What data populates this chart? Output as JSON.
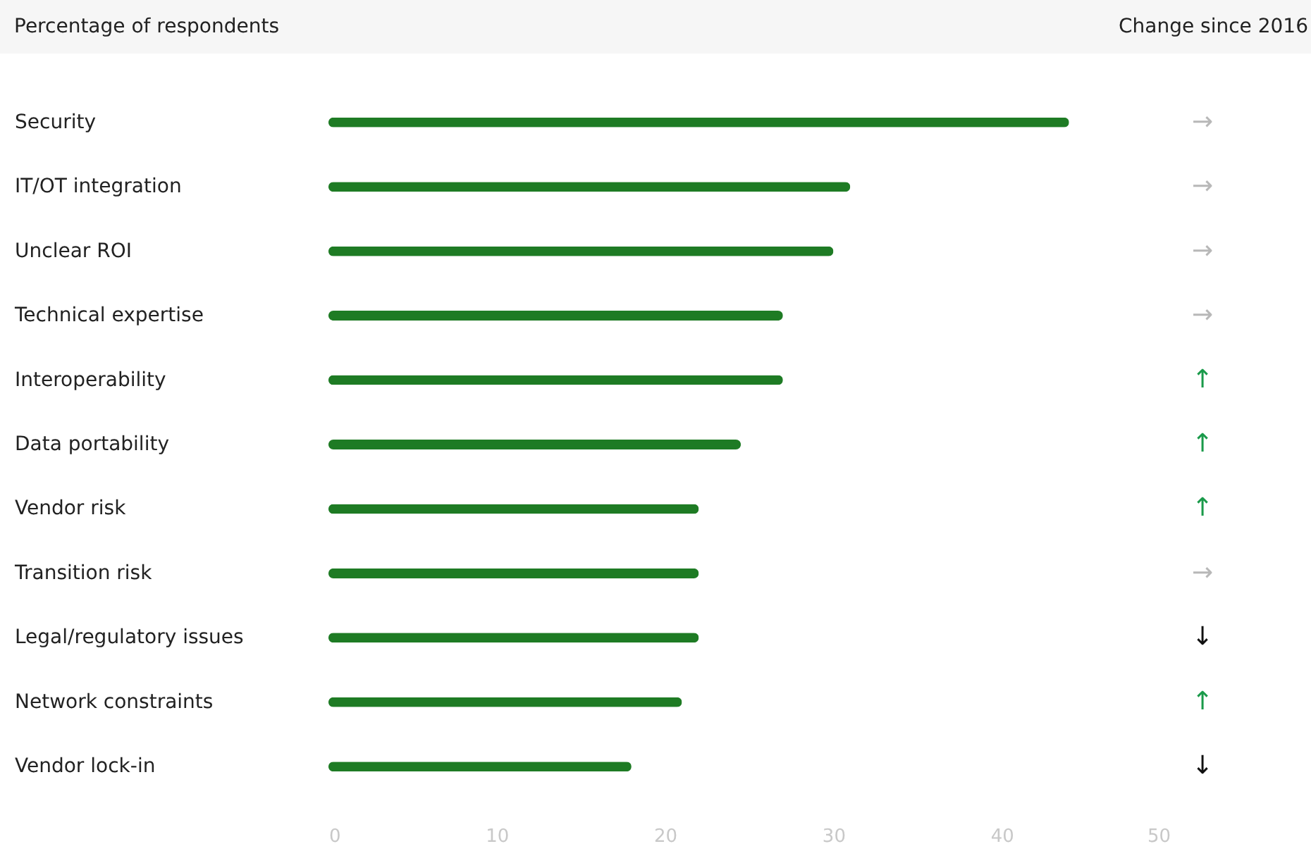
{
  "chart_data": {
    "type": "bar",
    "orientation": "horizontal",
    "title": "Percentage of respondents",
    "annotations": [
      "Change since 2016"
    ],
    "categories": [
      "Security",
      "IT/OT integration",
      "Unclear ROI",
      "Technical expertise",
      "Interoperability",
      "Data portability",
      "Vendor risk",
      "Transition risk",
      "Legal/regulatory issues",
      "Network constraints",
      "Vendor lock-in"
    ],
    "values": [
      44,
      31,
      30,
      27,
      27,
      24.5,
      22,
      22,
      22,
      21,
      18
    ],
    "value_labels": [
      "→",
      "→",
      "→",
      "→",
      "↑",
      "↑",
      "↑",
      "→",
      "↓",
      "↑",
      "↓"
    ],
    "color": "#1e7b24",
    "xlim": [
      0,
      50
    ],
    "xticks": [
      0,
      10,
      20,
      30,
      40,
      50
    ],
    "grid": false
  }
}
